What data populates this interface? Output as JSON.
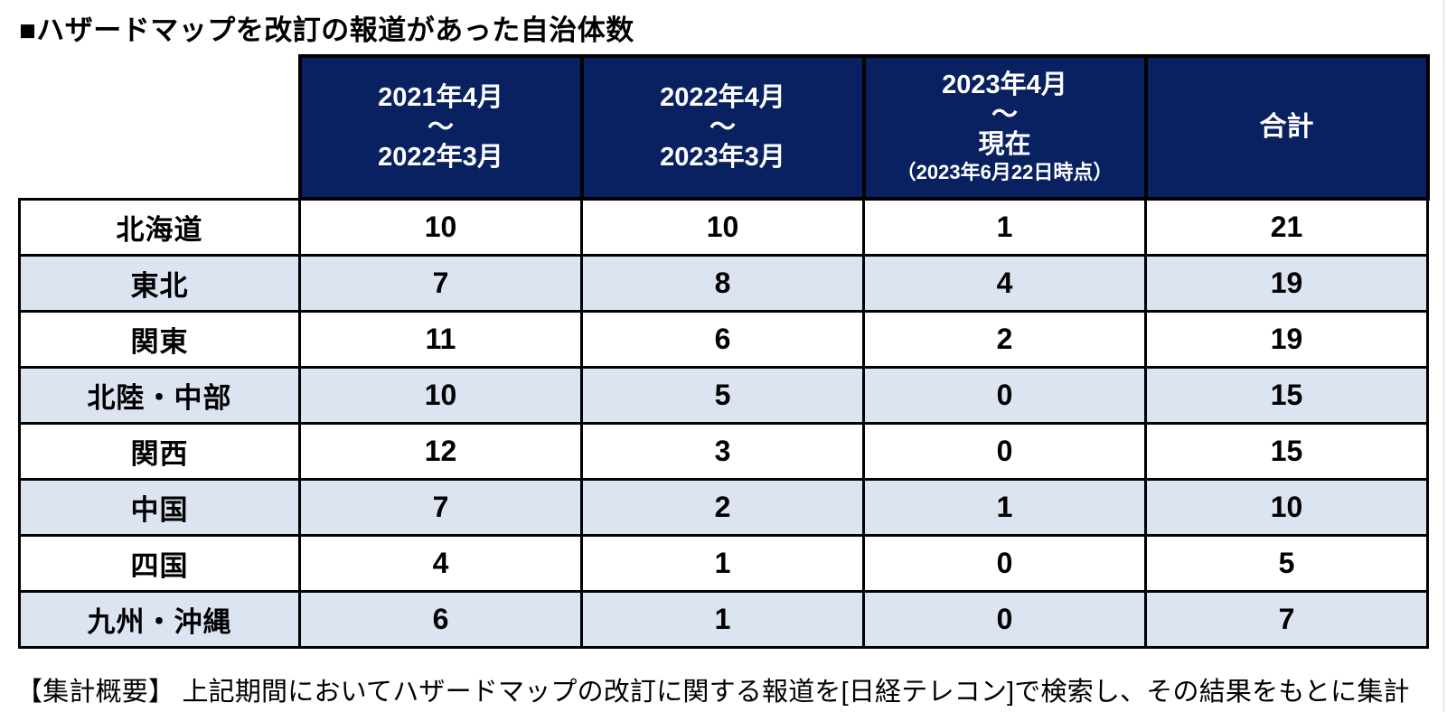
{
  "chart_data": {
    "type": "table",
    "title": "■ハザードマップを改訂の報道があった自治体数",
    "header": {
      "row_label_column": "",
      "columns": [
        {
          "line1": "2021年4月",
          "tilde": "～",
          "line2": "2022年3月",
          "note": ""
        },
        {
          "line1": "2022年4月",
          "tilde": "～",
          "line2": "2023年3月",
          "note": ""
        },
        {
          "line1": "2023年4月",
          "tilde": "～",
          "line2": "現在",
          "note": "（2023年6月22日時点）"
        },
        {
          "label": "合計"
        }
      ]
    },
    "rows": [
      {
        "region": "北海道",
        "values": [
          "10",
          "10",
          "1",
          "21"
        ]
      },
      {
        "region": "東北",
        "values": [
          "7",
          "8",
          "4",
          "19"
        ]
      },
      {
        "region": "関東",
        "values": [
          "11",
          "6",
          "2",
          "19"
        ]
      },
      {
        "region": "北陸・中部",
        "values": [
          "10",
          "5",
          "0",
          "15"
        ]
      },
      {
        "region": "関西",
        "values": [
          "12",
          "3",
          "0",
          "15"
        ]
      },
      {
        "region": "中国",
        "values": [
          "7",
          "2",
          "1",
          "10"
        ]
      },
      {
        "region": "四国",
        "values": [
          "4",
          "1",
          "0",
          "5"
        ]
      },
      {
        "region": "九州・沖縄",
        "values": [
          "6",
          "1",
          "0",
          "7"
        ]
      }
    ],
    "footnote": "【集計概要】 上記期間においてハザードマップの改訂に関する報道を[日経テレコン]で検索し、その結果をもとに集計",
    "colors": {
      "header_bg": "#0a2161",
      "header_text": "#ffffff",
      "alt_row_bg": "#dce3f1",
      "row_bg": "#ffffff",
      "border": "#000000",
      "text": "#000000"
    },
    "layout": {
      "legend": "none",
      "grid": "table-borders"
    }
  }
}
